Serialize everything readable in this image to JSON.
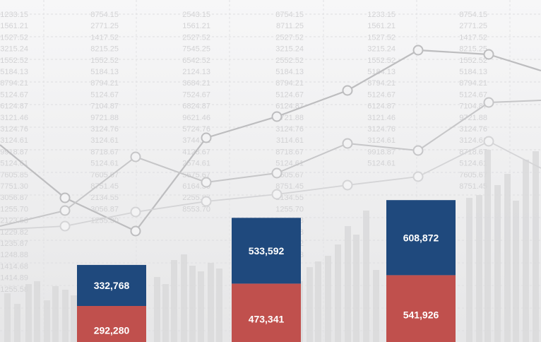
{
  "chart_data": {
    "type": "bar",
    "stacked": true,
    "categories": [
      "",
      "",
      ""
    ],
    "series": [
      {
        "values": [
          292280,
          473341,
          541926
        ],
        "color": "#c0504d"
      },
      {
        "values": [
          332768,
          533592,
          608872
        ],
        "color": "#1f497d"
      }
    ],
    "data_labels": [
      [
        "292,280",
        "473,341",
        "541,926"
      ],
      [
        "332,768",
        "533,592",
        "608,872"
      ]
    ],
    "axes_visible": false,
    "legend": "none"
  },
  "background": {
    "style": "decorative financial line and bar chart watermark",
    "number_columns": [
      [
        "1233.15",
        "1561.21",
        "1527.52",
        "3215.24",
        "1552.52",
        "5184.13",
        "8794.21",
        "5124.67",
        "6124.87",
        "3121.46",
        "3124.76",
        "3124.61",
        "9918.87",
        "5124.61",
        "7605.85",
        "7751.30",
        "3056.87",
        "1255.70",
        "2123.58",
        "1229.82",
        "1235.87",
        "1248.88",
        "1414.68",
        "1414.89",
        "1255.58"
      ],
      [
        "8754.15",
        "2771.25",
        "1417.52",
        "8215.25",
        "1552.52",
        "5184.13",
        "8794.21",
        "5124.67",
        "7104.87",
        "9721.88",
        "3124.76",
        "3124.61",
        "8718.67",
        "5124.61",
        "7605.67",
        "8751.45",
        "2134.55",
        "3056.87",
        "1255.30"
      ],
      [
        "2543.15",
        "1561.21",
        "2527.52",
        "7545.25",
        "6542.52",
        "2124.13",
        "3684.21",
        "7524.67",
        "6824.87",
        "9621.46",
        "5724.76",
        "3744.61",
        "4128.67",
        "2574.61",
        "5675.67",
        "6164.30",
        "2255.87",
        "8553.70"
      ],
      [
        "8754.15",
        "8711.25",
        "2527.52",
        "3215.24",
        "2552.52",
        "5184.13",
        "8794.21",
        "5124.67",
        "6124.87",
        "9721.88",
        "3124.76",
        "3114.61",
        "8718.67",
        "5124.61",
        "2605.67",
        "8751.45",
        "2134.55",
        "1255.70",
        "2543.58",
        "2123.58",
        "8565.82",
        "7848.83"
      ],
      [
        "1233.15",
        "1561.21",
        "1527.52",
        "3215.24",
        "1552.52",
        "5184.13",
        "8794.21",
        "5124.67",
        "6124.87",
        "3121.46",
        "3124.76",
        "3124.61",
        "9918.87",
        "5124.61"
      ],
      [
        "8754.15",
        "2771.25",
        "1417.52",
        "8215.25",
        "1552.52",
        "5184.13",
        "8794.21",
        "5124.67",
        "7104.87",
        "9721.88",
        "3124.76",
        "3124.61",
        "8718.67",
        "5124.61",
        "7605.67",
        "8751.45"
      ]
    ]
  }
}
